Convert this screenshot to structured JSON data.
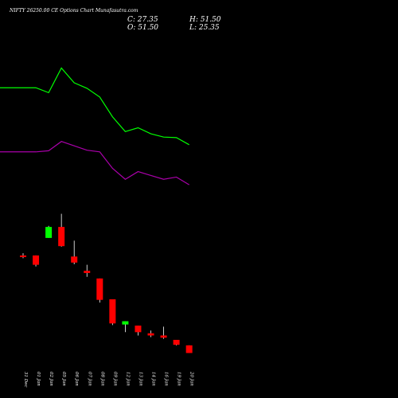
{
  "header": {
    "title": "NIFTY 26250.00  CE Options  Chart Munafasutra.com",
    "close_label": "C: 27.35",
    "high_label": "H: 51.50",
    "open_label": "O: 51.50",
    "low_label": "L: 25.35"
  },
  "colors": {
    "background": "#000000",
    "up": "#00ff00",
    "down": "#ff0000",
    "wick": "#ffffff",
    "ma_fast": "#00ff00",
    "ma_slow": "#aa00aa"
  },
  "chart_data": {
    "type": "candlestick",
    "categories": [
      "31 Dec",
      "01 Jan",
      "02 Jan",
      "05 Jan",
      "06 Jan",
      "07 Jan",
      "08 Jan",
      "09 Jan",
      "12 Jan",
      "13 Jan",
      "14 Jan",
      "16 Jan",
      "19 Jan",
      "20 Jan"
    ],
    "candles": [
      {
        "date": "31 Dec",
        "open": 56.0,
        "high": 58.0,
        "low": 53.5,
        "close": 54.5
      },
      {
        "date": "01 Jan",
        "open": 56.0,
        "high": 56.0,
        "low": 46.0,
        "close": 47.5
      },
      {
        "date": "02 Jan",
        "open": 72.0,
        "high": 83.0,
        "low": 72.0,
        "close": 82.0
      },
      {
        "date": "05 Jan",
        "open": 82.0,
        "high": 94.0,
        "low": 64.0,
        "close": 64.5
      },
      {
        "date": "06 Jan",
        "open": 55.0,
        "high": 69.5,
        "low": 48.0,
        "close": 49.5
      },
      {
        "date": "07 Jan",
        "open": 42.0,
        "high": 47.5,
        "low": 36.5,
        "close": 40.0
      },
      {
        "date": "08 Jan",
        "open": 35.0,
        "high": 35.0,
        "low": 13.0,
        "close": 15.5
      },
      {
        "date": "09 Jan",
        "open": 16.0,
        "high": 16.0,
        "low": -7.5,
        "close": -6.0
      },
      {
        "date": "12 Jan",
        "open": -7.0,
        "high": -4.0,
        "low": -14.0,
        "close": -4.0
      },
      {
        "date": "13 Jan",
        "open": -8.0,
        "high": -8.0,
        "low": -17.0,
        "close": -14.0
      },
      {
        "date": "14 Jan",
        "open": -15.0,
        "high": -12.5,
        "low": -18.5,
        "close": -17.0
      },
      {
        "date": "16 Jan",
        "open": -17.0,
        "high": -9.0,
        "low": -20.0,
        "close": -19.0
      },
      {
        "date": "19 Jan",
        "open": -21.0,
        "high": -21.0,
        "low": -26.0,
        "close": -25.5
      },
      {
        "date": "20 Jan",
        "open": -26.0,
        "high": -26.0,
        "low": -33.0,
        "close": -33.0
      }
    ],
    "ma_fast_x": [
      0,
      1,
      2,
      3,
      4,
      5,
      6,
      7,
      8,
      9,
      10,
      11,
      12,
      13
    ],
    "ma_fast": [
      209.0,
      209.0,
      204.5,
      227.0,
      213.5,
      208.5,
      200.5,
      182.5,
      169.0,
      172.5,
      167.0,
      164.0,
      163.5,
      157.0
    ],
    "ma_slow_x": [
      0,
      1,
      2,
      3,
      4,
      5,
      6,
      7,
      8,
      9,
      10,
      11,
      12,
      13
    ],
    "ma_slow": [
      150.5,
      150.5,
      151.5,
      160.0,
      156.0,
      152.0,
      150.5,
      135.5,
      125.5,
      132.5,
      129.0,
      125.5,
      127.5,
      120.5
    ],
    "ma_extend_left": true,
    "ylim": [
      -45,
      260
    ],
    "grid": false,
    "xlabel": "",
    "ylabel": ""
  }
}
